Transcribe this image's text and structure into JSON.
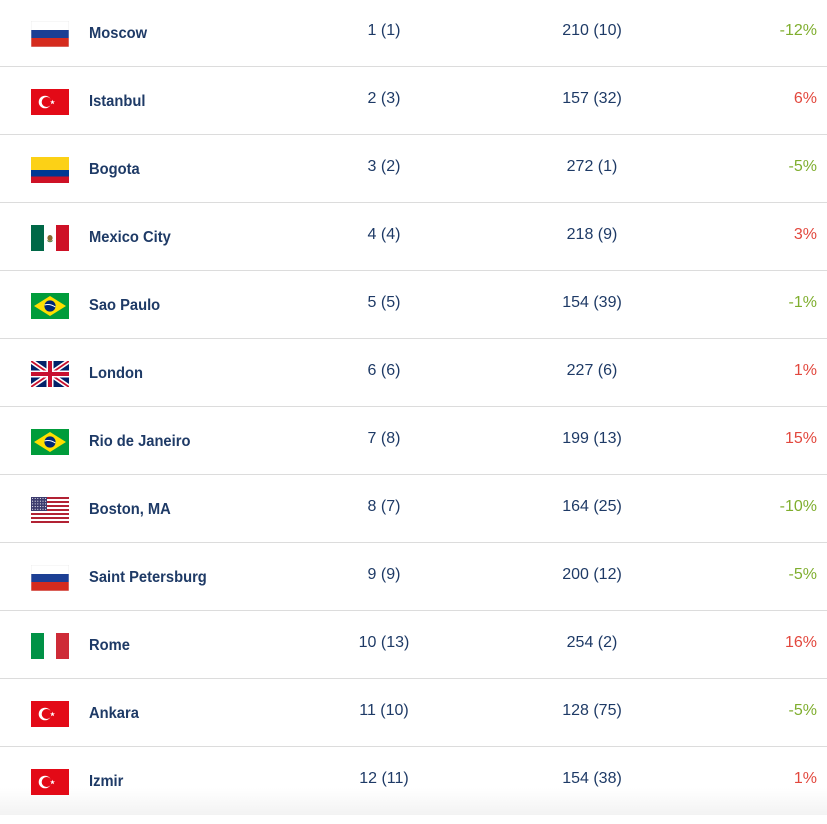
{
  "colors": {
    "text": "#1e3a66",
    "negative_change": "#7fae2e",
    "positive_change": "#e2473d",
    "divider": "#dcdcdc"
  },
  "rows": [
    {
      "flag": "russia-flag-icon",
      "city": "Moscow",
      "rank": "1 (1)",
      "index": "210 (10)",
      "change": "-12%",
      "trend": "neg"
    },
    {
      "flag": "turkey-flag-icon",
      "city": "Istanbul",
      "rank": "2 (3)",
      "index": "157 (32)",
      "change": "6%",
      "trend": "pos"
    },
    {
      "flag": "colombia-flag-icon",
      "city": "Bogota",
      "rank": "3 (2)",
      "index": "272 (1)",
      "change": "-5%",
      "trend": "neg"
    },
    {
      "flag": "mexico-flag-icon",
      "city": "Mexico City",
      "rank": "4 (4)",
      "index": "218 (9)",
      "change": "3%",
      "trend": "pos"
    },
    {
      "flag": "brazil-flag-icon",
      "city": "Sao Paulo",
      "rank": "5 (5)",
      "index": "154 (39)",
      "change": "-1%",
      "trend": "neg"
    },
    {
      "flag": "uk-flag-icon",
      "city": "London",
      "rank": "6 (6)",
      "index": "227 (6)",
      "change": "1%",
      "trend": "pos"
    },
    {
      "flag": "brazil-flag-icon",
      "city": "Rio de Janeiro",
      "rank": "7 (8)",
      "index": "199 (13)",
      "change": "15%",
      "trend": "pos"
    },
    {
      "flag": "usa-flag-icon",
      "city": "Boston, MA",
      "rank": "8 (7)",
      "index": "164 (25)",
      "change": "-10%",
      "trend": "neg"
    },
    {
      "flag": "russia-flag-icon",
      "city": "Saint Petersburg",
      "rank": "9 (9)",
      "index": "200 (12)",
      "change": "-5%",
      "trend": "neg"
    },
    {
      "flag": "italy-flag-icon",
      "city": "Rome",
      "rank": "10 (13)",
      "index": "254 (2)",
      "change": "16%",
      "trend": "pos"
    },
    {
      "flag": "turkey-flag-icon",
      "city": "Ankara",
      "rank": "11 (10)",
      "index": "128 (75)",
      "change": "-5%",
      "trend": "neg"
    },
    {
      "flag": "turkey-flag-icon",
      "city": "Izmir",
      "rank": "12 (11)",
      "index": "154 (38)",
      "change": "1%",
      "trend": "pos"
    }
  ]
}
